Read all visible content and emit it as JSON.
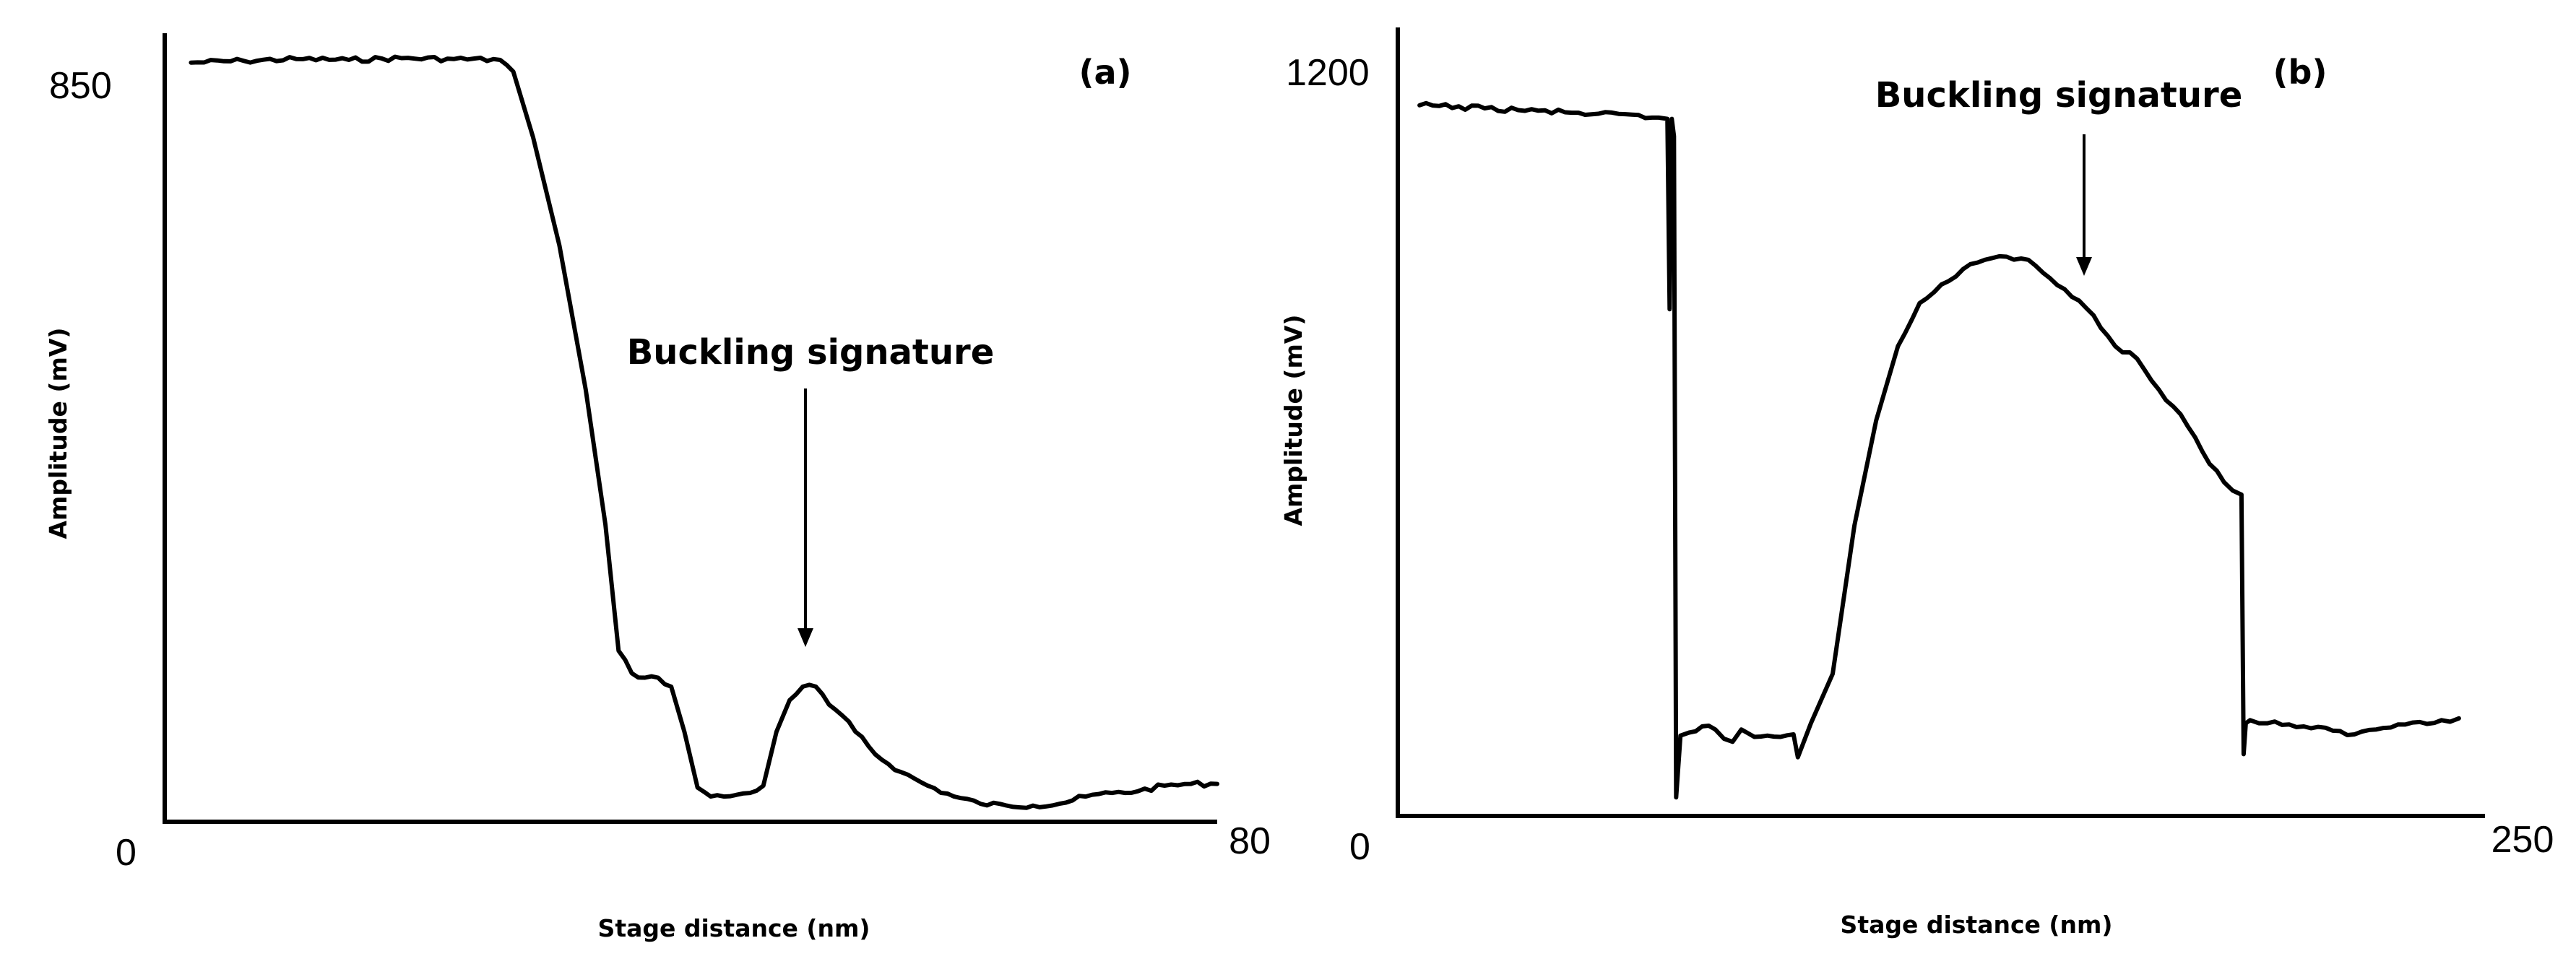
{
  "chart_data": [
    {
      "type": "line",
      "panel_label": "(a)",
      "xlabel": "Stage distance (nm)",
      "ylabel": "Amplitude (mV)",
      "xlim": [
        0,
        80
      ],
      "ylim": [
        0,
        850
      ],
      "x_ticks": [
        "0",
        "80"
      ],
      "y_ticks": [
        "850"
      ],
      "annotation": {
        "text": "Buckling signature",
        "x": 49,
        "y": 155
      },
      "series": [
        {
          "name": "amplitude",
          "x": [
            2,
            6,
            10,
            14,
            18,
            22,
            25.5,
            26.5,
            28,
            30,
            32,
            33.5,
            34.5,
            35.5,
            36.5,
            37.5,
            38.5,
            39.5,
            40.5,
            41.5,
            42.5,
            43.5,
            44.5,
            45.5,
            46.5,
            47.5,
            48.5,
            49.5,
            50.5,
            51.5,
            52.5,
            54,
            56,
            58,
            60,
            62,
            64,
            66,
            68,
            70,
            72,
            74,
            76,
            78,
            80
          ],
          "y": [
            843,
            845,
            847,
            846,
            848,
            847,
            846,
            833,
            760,
            640,
            480,
            330,
            190,
            165,
            160,
            160,
            150,
            100,
            38,
            28,
            28,
            30,
            32,
            40,
            100,
            135,
            150,
            150,
            130,
            118,
            100,
            75,
            55,
            40,
            28,
            20,
            18,
            18,
            20,
            28,
            32,
            34,
            40,
            42,
            42
          ]
        }
      ]
    },
    {
      "type": "line",
      "panel_label": "(b)",
      "xlabel": "Stage distance (nm)",
      "ylabel": "Amplitude (mV)",
      "xlim": [
        0,
        250
      ],
      "ylim": [
        0,
        1200
      ],
      "x_ticks": [
        "0",
        "250"
      ],
      "y_ticks": [
        "1200"
      ],
      "annotation": {
        "text": "Buckling signature",
        "x": 167,
        "y": 860
      },
      "series": [
        {
          "name": "amplitude",
          "x": [
            5,
            20,
            40,
            60,
            62,
            62.5,
            63,
            63.5,
            64,
            65,
            67,
            70,
            73,
            75,
            77,
            79,
            82,
            85,
            88,
            91,
            92,
            95,
            100,
            105,
            110,
            115,
            120,
            125,
            130,
            135,
            140,
            145,
            150,
            155,
            160,
            165,
            170,
            175,
            180,
            185,
            190,
            194,
            194.5,
            195,
            196,
            198,
            200,
            205,
            210,
            215,
            220,
            225,
            230,
            235,
            240,
            244
          ],
          "y": [
            1150,
            1145,
            1138,
            1130,
            1128,
            820,
            1128,
            1100,
            30,
            130,
            135,
            145,
            140,
            125,
            120,
            140,
            128,
            130,
            128,
            132,
            95,
            150,
            230,
            470,
            640,
            760,
            830,
            860,
            885,
            900,
            905,
            900,
            870,
            840,
            810,
            760,
            740,
            690,
            650,
            590,
            540,
            520,
            100,
            150,
            155,
            150,
            150,
            148,
            142,
            138,
            132,
            140,
            148,
            152,
            155,
            158
          ]
        }
      ]
    }
  ]
}
